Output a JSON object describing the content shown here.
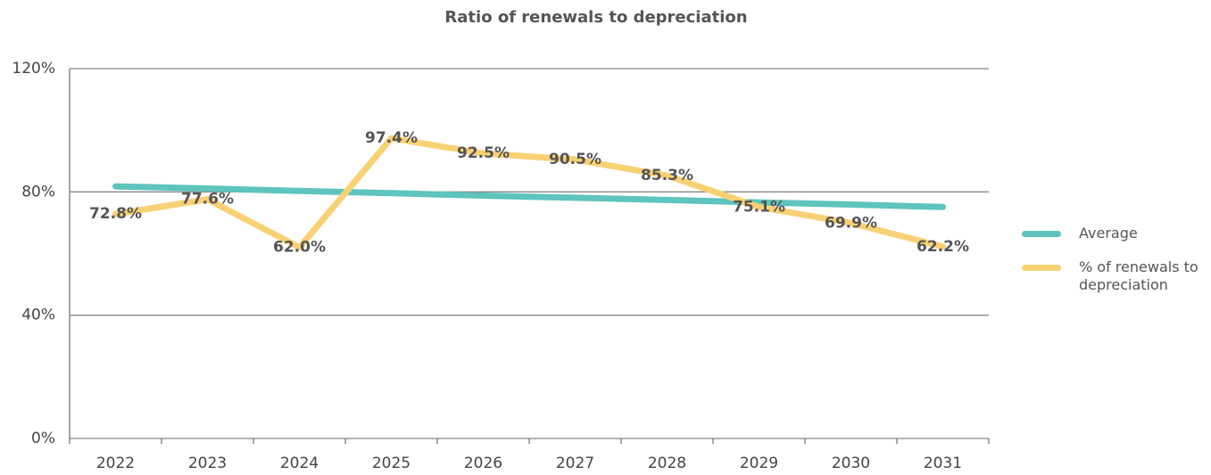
{
  "chart_data": {
    "type": "line",
    "title": "Ratio of renewals to depreciation",
    "categories": [
      "2022",
      "2023",
      "2024",
      "2025",
      "2026",
      "2027",
      "2028",
      "2029",
      "2030",
      "2031"
    ],
    "series": [
      {
        "name": "Average",
        "color": "#5ec4bd",
        "values": [
          81.8,
          81.1,
          80.3,
          79.6,
          78.8,
          78.1,
          77.4,
          76.6,
          75.9,
          75.1
        ]
      },
      {
        "name": "% of renewals to depreciation",
        "color": "#f8d175",
        "values": [
          72.8,
          77.6,
          62.0,
          97.4,
          92.5,
          90.5,
          85.3,
          75.1,
          69.9,
          62.2
        ],
        "value_labels": [
          "72.8%",
          "77.6%",
          "62.0%",
          "97.4%",
          "92.5%",
          "90.5%",
          "85.3%",
          "75.1%",
          "69.9%",
          "62.2%"
        ]
      }
    ],
    "ylim": [
      0,
      120
    ],
    "yticks": [
      {
        "value": 0,
        "label": "0%"
      },
      {
        "value": 40,
        "label": "40%"
      },
      {
        "value": 80,
        "label": "80%"
      },
      {
        "value": 120,
        "label": "120%"
      }
    ],
    "grid": true,
    "legend": "right"
  }
}
